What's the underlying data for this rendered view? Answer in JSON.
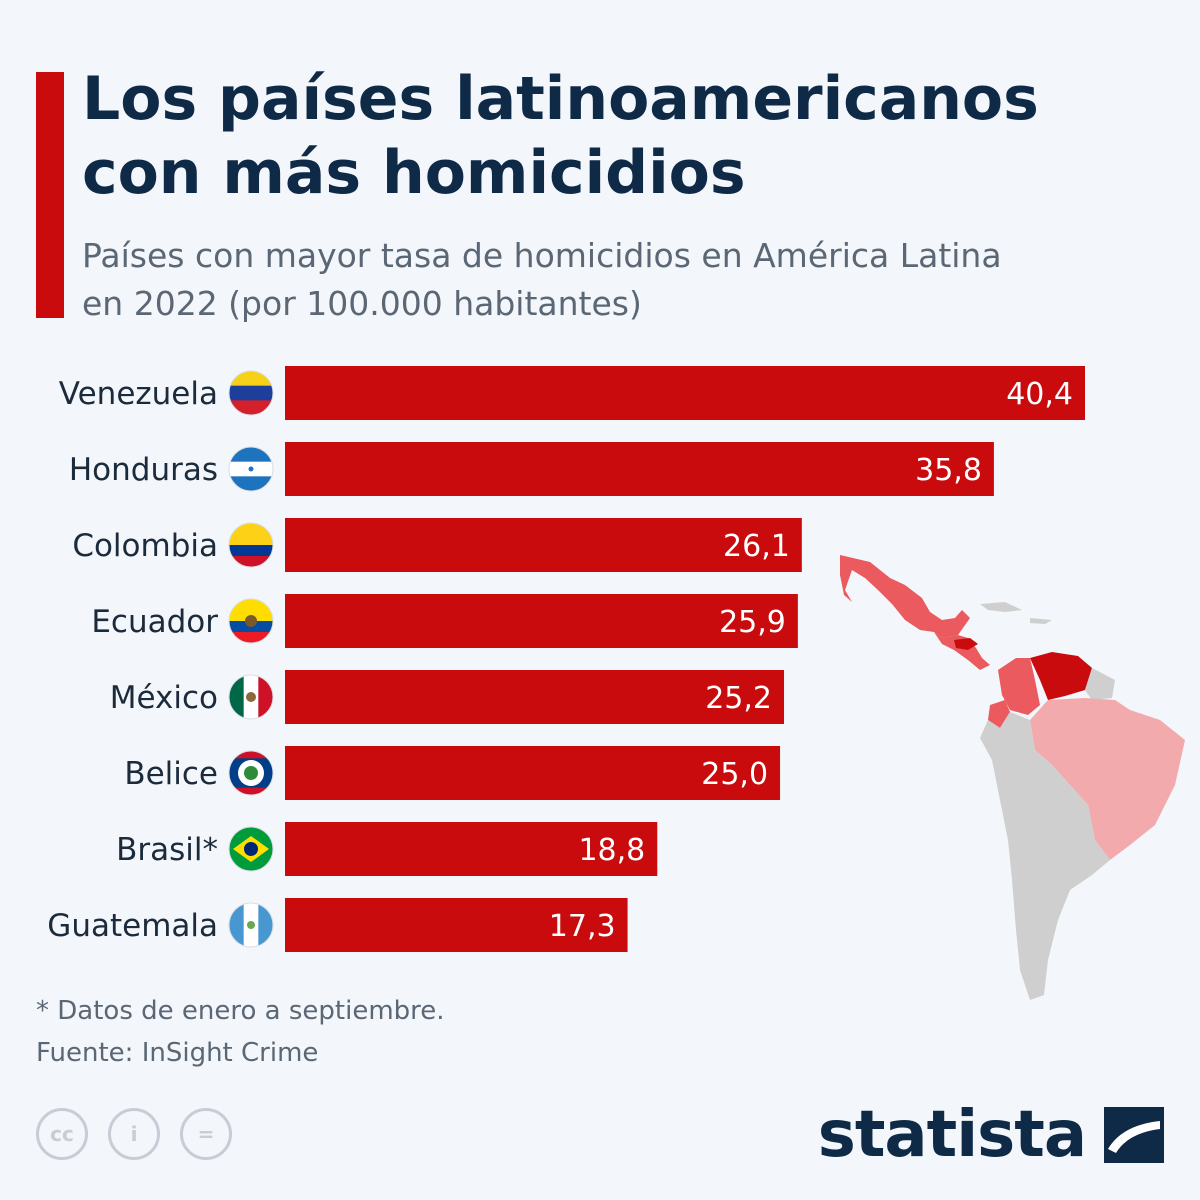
{
  "header": {
    "title_lines": [
      "Los países latinoamericanos",
      "con más homicidios"
    ],
    "subtitle_lines": [
      "Países con mayor tasa de homicidios en América Latina",
      "en 2022 (por 100.000 habitantes)"
    ]
  },
  "colors": {
    "accent": "#c90b0e",
    "bar": "#c90b0e",
    "title": "#0f2a47",
    "text": "#5b6775",
    "background": "#f3f6fa",
    "map_dark": "#c90b0e",
    "map_mid": "#ea5a5e",
    "map_light": "#f3aaac",
    "map_grey": "#cfcfcf"
  },
  "chart_data": {
    "type": "bar",
    "orientation": "horizontal",
    "categories": [
      "Venezuela",
      "Honduras",
      "Colombia",
      "Ecuador",
      "México",
      "Belice",
      "Brasil*",
      "Guatemala"
    ],
    "value_labels": [
      "40,4",
      "35,8",
      "26,1",
      "25,9",
      "25,2",
      "25,0",
      "18,8",
      "17,3"
    ],
    "values": [
      40.4,
      35.8,
      26.1,
      25.9,
      25.2,
      25.0,
      18.8,
      17.3
    ],
    "flag_icons": [
      "venezuela-flag-icon",
      "honduras-flag-icon",
      "colombia-flag-icon",
      "ecuador-flag-icon",
      "mexico-flag-icon",
      "belize-flag-icon",
      "brazil-flag-icon",
      "guatemala-flag-icon"
    ],
    "xlim": [
      0,
      40.4
    ],
    "grid": false,
    "legend": "none"
  },
  "footer": {
    "note": "* Datos de enero a septiembre.",
    "source": "Fuente: InSight Crime",
    "cc_icons": [
      "cc",
      "i",
      "="
    ],
    "brand": "statista"
  }
}
